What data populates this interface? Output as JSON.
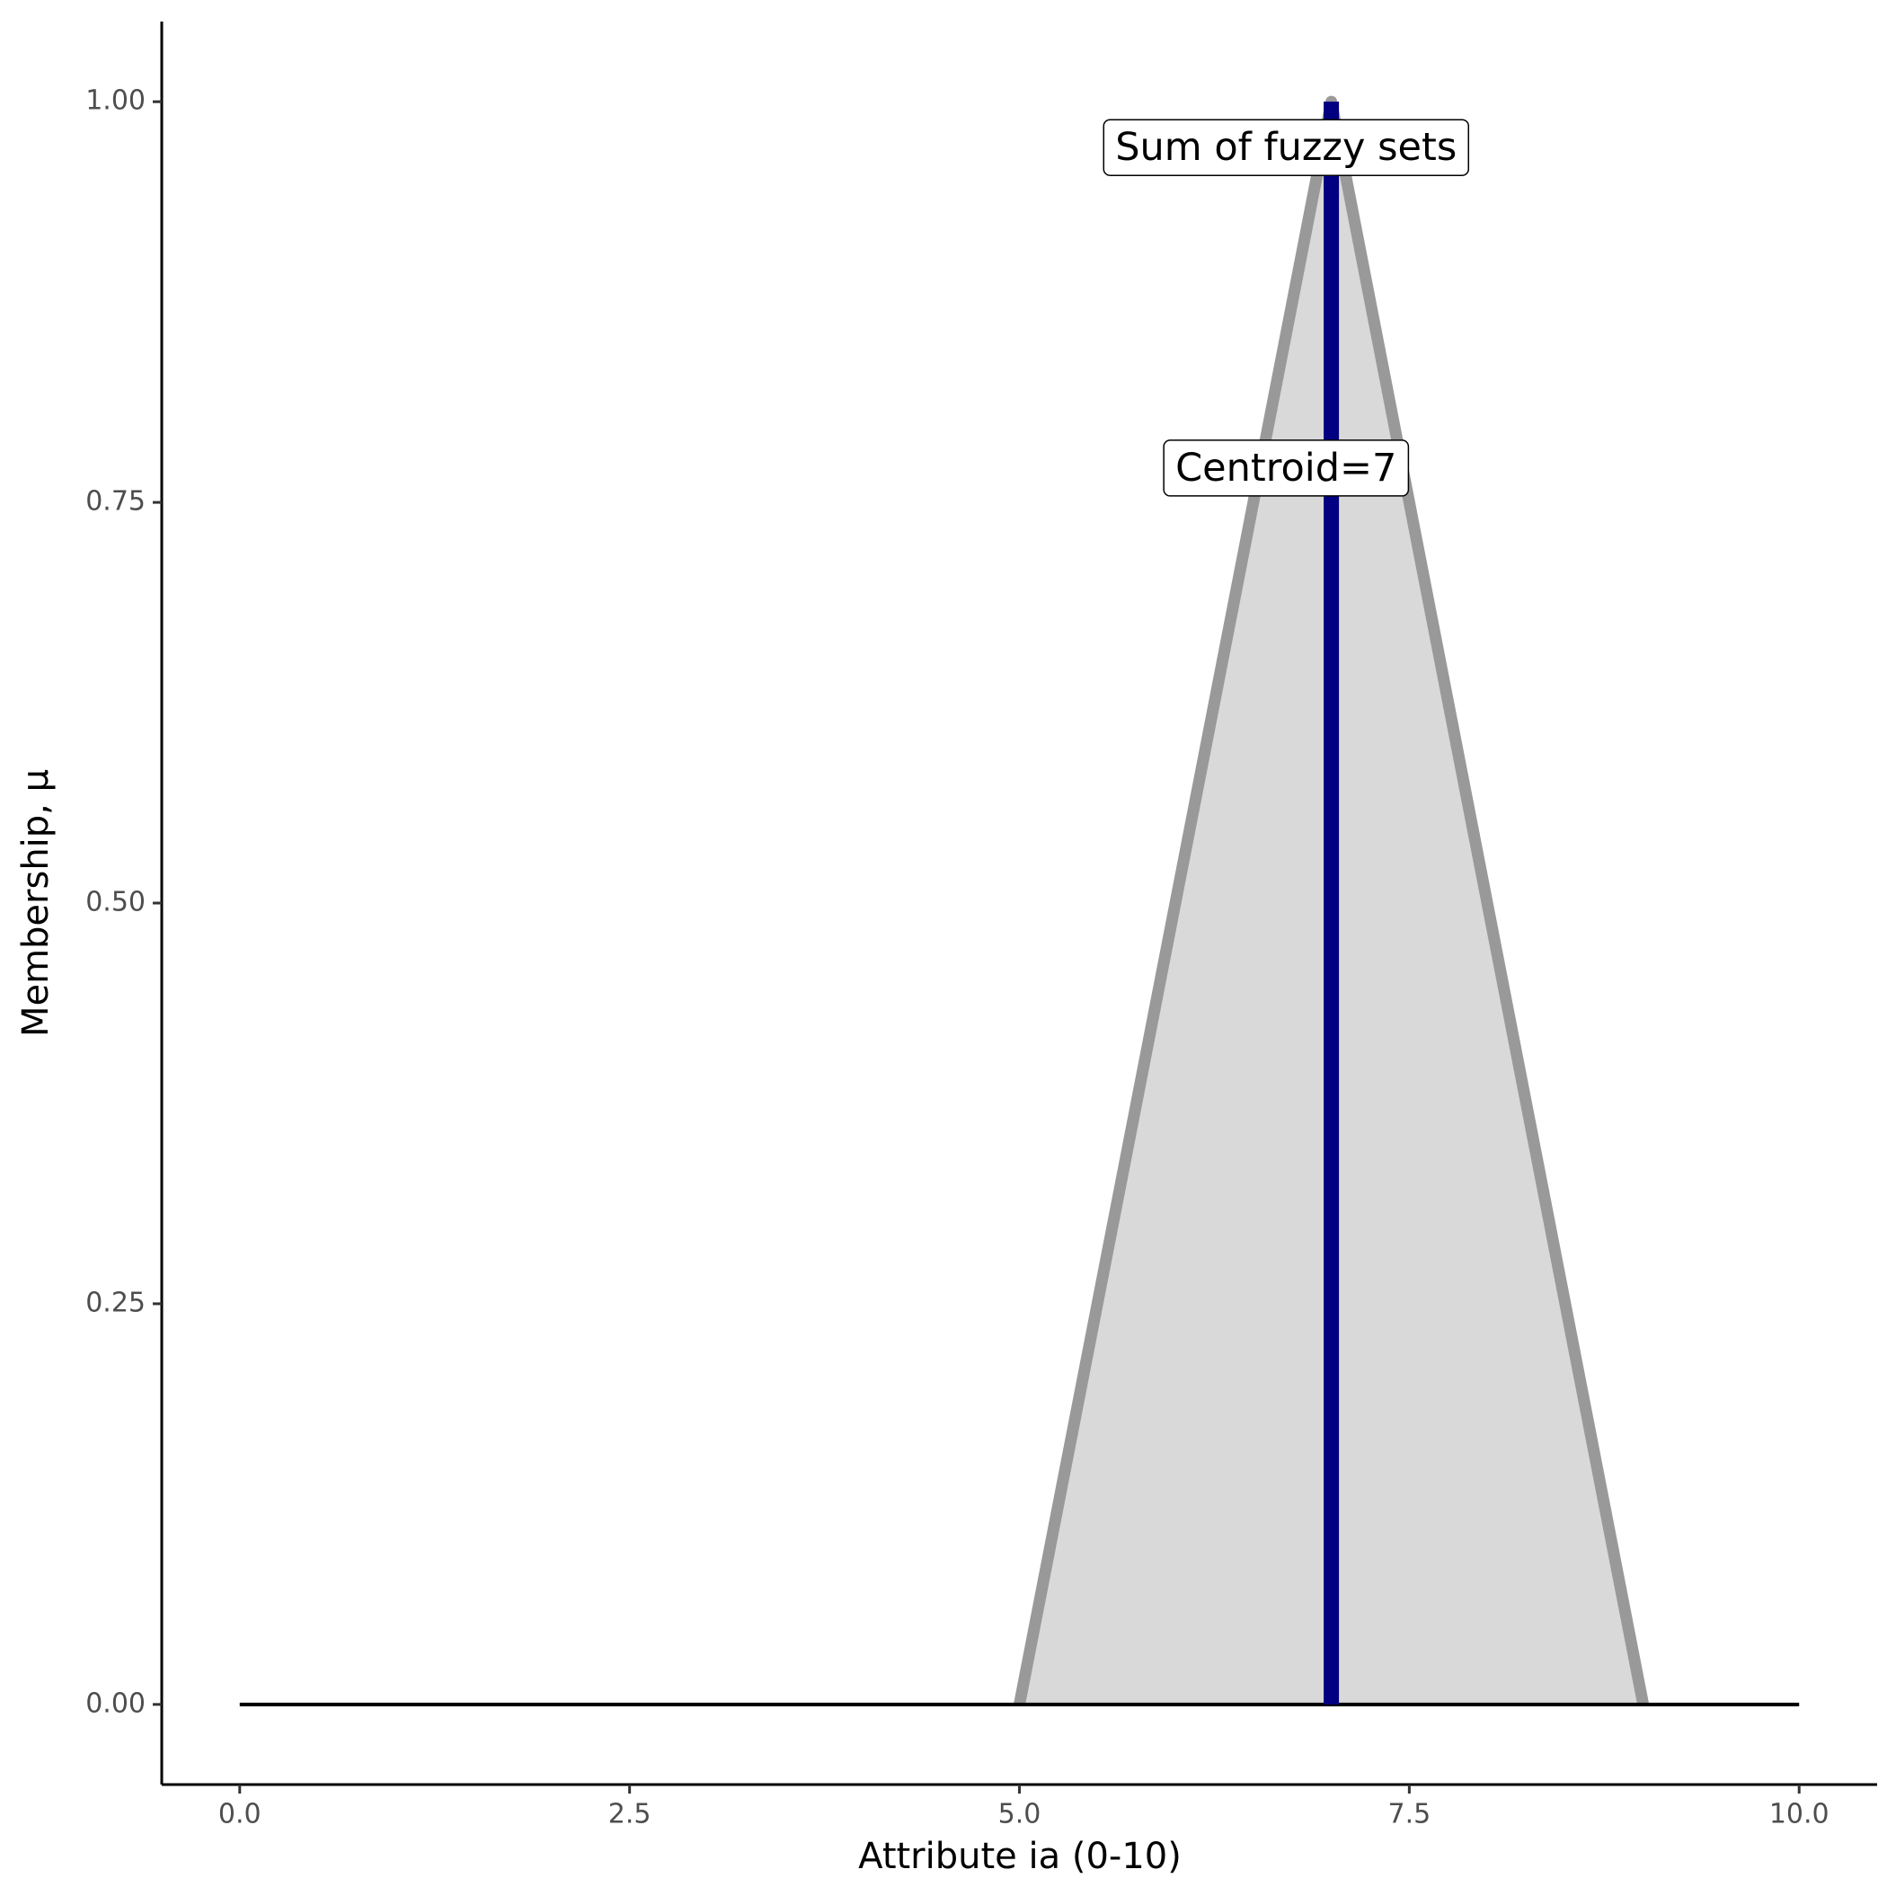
{
  "chart_data": {
    "type": "fuzzy",
    "x_label": "Attribute ia (0-10)",
    "y_label": "Membership, μ",
    "xlim": [
      -0.5,
      10.5
    ],
    "ylim": [
      -0.05,
      1.05
    ],
    "xticks": [
      {
        "value": 0,
        "label": "0.0"
      },
      {
        "value": 2.5,
        "label": "2.5"
      },
      {
        "value": 5,
        "label": "5.0"
      },
      {
        "value": 7.5,
        "label": "7.5"
      },
      {
        "value": 10,
        "label": "10.0"
      }
    ],
    "yticks": [
      {
        "value": 0,
        "label": "0.00"
      },
      {
        "value": 0.25,
        "label": "0.25"
      },
      {
        "value": 0.5,
        "label": "0.50"
      },
      {
        "value": 0.75,
        "label": "0.75"
      },
      {
        "value": 1,
        "label": "1.00"
      }
    ],
    "layers": [
      {
        "type": "area",
        "x": [
          5,
          7,
          9
        ],
        "values": [
          0,
          1,
          0
        ],
        "color": "#999999",
        "fill": "#d9d9d9"
      },
      {
        "type": "line",
        "x": [
          0,
          10
        ],
        "values": [
          0,
          0
        ],
        "color": "#000000"
      },
      {
        "type": "line",
        "x": [
          7,
          7
        ],
        "values": [
          0,
          1
        ],
        "color": "#000080"
      }
    ],
    "annotations": [
      {
        "text": "Sum of fuzzy sets",
        "x": 6.71,
        "y": 0.97
      },
      {
        "text": "Centroid=7",
        "x": 6.71,
        "y": 0.77
      }
    ]
  }
}
